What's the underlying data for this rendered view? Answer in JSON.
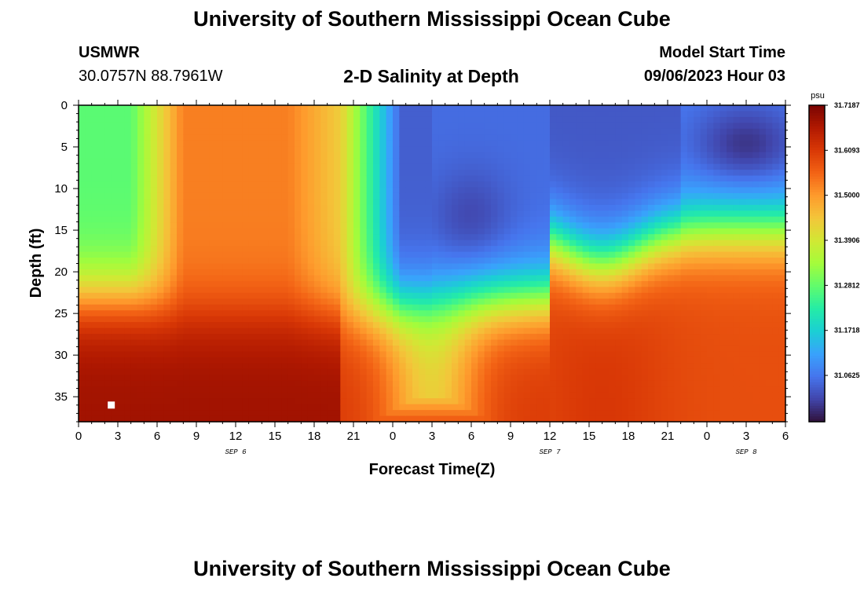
{
  "header": {
    "title": "University of Southern Mississippi Ocean Cube",
    "station": "USMWR",
    "coords": "30.0757N  88.7961W",
    "subtitle": "2-D Salinity at Depth",
    "model_label": "Model Start Time",
    "model_time": "09/06/2023 Hour 03"
  },
  "footer": {
    "title": "University of Southern Mississippi Ocean Cube"
  },
  "colors": {
    "scale": [
      "#30123b",
      "#4145ab",
      "#4675ed",
      "#39a2fc",
      "#1bcfd4",
      "#24eca6",
      "#61fc6c",
      "#a4fc3b",
      "#d1e834",
      "#f3c63a",
      "#fe9b2d",
      "#f36315",
      "#d93806",
      "#b11901",
      "#7a0402"
    ],
    "marker": "#ffffff",
    "frame": "#000000"
  },
  "chart_data": {
    "type": "heatmap",
    "title": "2-D Salinity at Depth",
    "xlabel": "Forecast Time(Z)",
    "ylabel": "Depth (ft)",
    "x_ticks": [
      "0",
      "3",
      "6",
      "9",
      "12",
      "15",
      "18",
      "21",
      "0",
      "3",
      "6",
      "9",
      "12",
      "15",
      "18",
      "21",
      "0",
      "3",
      "6"
    ],
    "date_labels": [
      {
        "label": "SEP 6",
        "hour": 12
      },
      {
        "label": "SEP 7",
        "hour": 36
      },
      {
        "label": "SEP 8",
        "hour": 51
      }
    ],
    "xlim_hours": [
      0,
      54
    ],
    "y_ticks": [
      "0",
      "5",
      "10",
      "15",
      "20",
      "25",
      "30",
      "35"
    ],
    "ylim_ft": [
      0,
      38
    ],
    "colorbar": {
      "unit": "psu",
      "labels": [
        "31.7187",
        "31.6093",
        "31.5000",
        "31.3906",
        "31.2812",
        "31.1718",
        "31.0625"
      ],
      "vmin": 30.95,
      "vmax": 31.7187
    },
    "marker": {
      "hour": 2.5,
      "depth_ft": 36
    }
  }
}
